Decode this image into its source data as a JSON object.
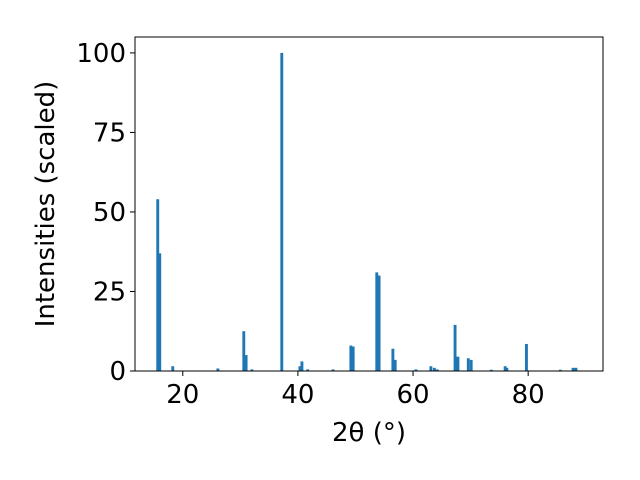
{
  "chart_data": {
    "type": "bar",
    "xlabel": "2θ (°)",
    "ylabel": "Intensities (scaled)",
    "color": "#1f77b4",
    "x": [
      15.65,
      16.0,
      18.26,
      26.1,
      30.6,
      31.0,
      32.0,
      37.2,
      40.35,
      40.7,
      41.7,
      46.1,
      49.2,
      49.6,
      53.7,
      54.1,
      56.5,
      56.9,
      60.5,
      63.1,
      63.7,
      64.2,
      67.3,
      67.8,
      69.6,
      70.1,
      73.6,
      76.0,
      76.3,
      79.7,
      85.6,
      87.8,
      88.3
    ],
    "values": [
      54,
      37,
      1.5,
      0.8,
      12.5,
      5,
      0.5,
      100,
      1.5,
      3,
      0.5,
      0.5,
      8,
      7.7,
      31,
      30,
      7,
      3.5,
      0.5,
      1.5,
      1,
      0.5,
      14.5,
      4.5,
      4,
      3.5,
      0.4,
      1.5,
      1,
      8.5,
      0.4,
      1,
      1
    ],
    "xlim": [
      11.7,
      93.0
    ],
    "ylim": [
      0,
      105
    ],
    "xticks": [
      20,
      40,
      60,
      80
    ],
    "yticks": [
      0,
      25,
      50,
      75,
      100
    ]
  }
}
